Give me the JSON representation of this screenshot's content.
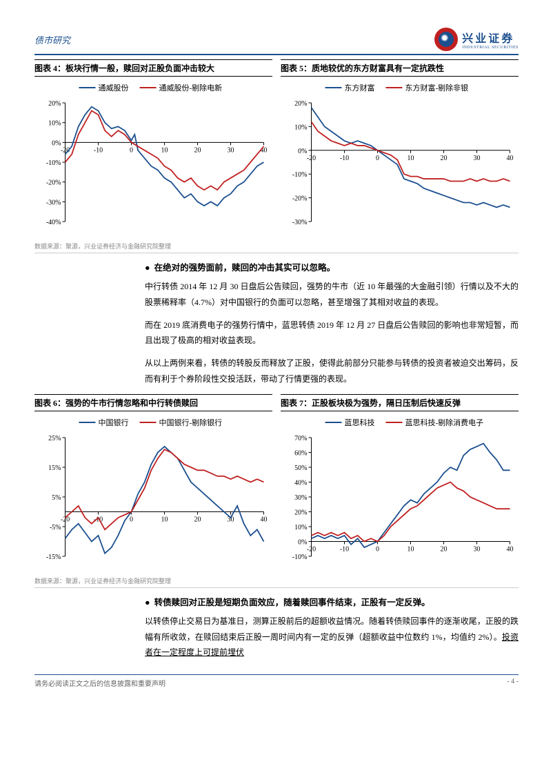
{
  "header": {
    "section": "债市研究",
    "company_cn": "兴业证券",
    "company_en": "INDUSTRIAL SECURITIES"
  },
  "source": "数据来源：聚源，兴业证券经济与金融研究院整理",
  "charts": {
    "c4": {
      "title": "图表 4：板块行情一般，赎回对正股负面冲击较大",
      "legend": [
        "通威股份",
        "通威股份-剔除电新"
      ],
      "colors": [
        "#1b4f8f",
        "#c02020"
      ],
      "xlim": [
        -20,
        40
      ],
      "ylim": [
        -40,
        20
      ],
      "ytick": 10,
      "ysuffix": "%",
      "series": [
        [
          [
            -20,
            -6
          ],
          [
            -18,
            -2
          ],
          [
            -16,
            8
          ],
          [
            -14,
            14
          ],
          [
            -12,
            18
          ],
          [
            -10,
            16
          ],
          [
            -8,
            10
          ],
          [
            -6,
            7
          ],
          [
            -4,
            8
          ],
          [
            -2,
            6
          ],
          [
            0,
            1
          ],
          [
            1,
            4
          ],
          [
            2,
            -4
          ],
          [
            4,
            -8
          ],
          [
            6,
            -12
          ],
          [
            8,
            -14
          ],
          [
            10,
            -18
          ],
          [
            12,
            -20
          ],
          [
            14,
            -24
          ],
          [
            16,
            -28
          ],
          [
            18,
            -26
          ],
          [
            20,
            -30
          ],
          [
            22,
            -32
          ],
          [
            24,
            -30
          ],
          [
            26,
            -32
          ],
          [
            28,
            -28
          ],
          [
            30,
            -26
          ],
          [
            32,
            -22
          ],
          [
            34,
            -20
          ],
          [
            36,
            -16
          ],
          [
            38,
            -12
          ],
          [
            40,
            -10
          ]
        ],
        [
          [
            -20,
            -10
          ],
          [
            -18,
            -6
          ],
          [
            -16,
            4
          ],
          [
            -14,
            10
          ],
          [
            -12,
            16
          ],
          [
            -10,
            14
          ],
          [
            -8,
            6
          ],
          [
            -6,
            3
          ],
          [
            -4,
            6
          ],
          [
            -2,
            4
          ],
          [
            0,
            0
          ],
          [
            2,
            -2
          ],
          [
            4,
            -4
          ],
          [
            6,
            -6
          ],
          [
            8,
            -8
          ],
          [
            10,
            -12
          ],
          [
            12,
            -14
          ],
          [
            14,
            -18
          ],
          [
            16,
            -20
          ],
          [
            18,
            -18
          ],
          [
            20,
            -22
          ],
          [
            22,
            -24
          ],
          [
            24,
            -22
          ],
          [
            26,
            -24
          ],
          [
            28,
            -20
          ],
          [
            30,
            -18
          ],
          [
            32,
            -16
          ],
          [
            34,
            -14
          ],
          [
            36,
            -10
          ],
          [
            38,
            -6
          ],
          [
            40,
            -2
          ]
        ]
      ]
    },
    "c5": {
      "title": "图表 5：质地较优的东方财富具有一定抗跌性",
      "legend": [
        "东方财富",
        "东方财富-剔除非银"
      ],
      "colors": [
        "#1b4f8f",
        "#c02020"
      ],
      "xlim": [
        -20,
        40
      ],
      "ylim": [
        -30,
        20
      ],
      "ytick": 10,
      "ysuffix": "%",
      "series": [
        [
          [
            -20,
            18
          ],
          [
            -18,
            14
          ],
          [
            -16,
            10
          ],
          [
            -14,
            8
          ],
          [
            -12,
            6
          ],
          [
            -10,
            4
          ],
          [
            -8,
            3
          ],
          [
            -6,
            4
          ],
          [
            -4,
            3
          ],
          [
            -2,
            2
          ],
          [
            0,
            0
          ],
          [
            2,
            -2
          ],
          [
            4,
            -4
          ],
          [
            6,
            -6
          ],
          [
            8,
            -12
          ],
          [
            10,
            -13
          ],
          [
            12,
            -14
          ],
          [
            14,
            -16
          ],
          [
            16,
            -17
          ],
          [
            18,
            -18
          ],
          [
            20,
            -19
          ],
          [
            22,
            -20
          ],
          [
            24,
            -21
          ],
          [
            26,
            -22
          ],
          [
            28,
            -22
          ],
          [
            30,
            -23
          ],
          [
            32,
            -22
          ],
          [
            34,
            -23
          ],
          [
            36,
            -24
          ],
          [
            38,
            -23
          ],
          [
            40,
            -24
          ]
        ],
        [
          [
            -20,
            12
          ],
          [
            -18,
            8
          ],
          [
            -16,
            6
          ],
          [
            -14,
            4
          ],
          [
            -12,
            3
          ],
          [
            -10,
            2
          ],
          [
            -8,
            3
          ],
          [
            -6,
            2
          ],
          [
            -4,
            2
          ],
          [
            -2,
            1
          ],
          [
            0,
            0
          ],
          [
            2,
            -1
          ],
          [
            4,
            -2
          ],
          [
            6,
            -4
          ],
          [
            8,
            -10
          ],
          [
            10,
            -11
          ],
          [
            12,
            -11
          ],
          [
            14,
            -12
          ],
          [
            16,
            -12
          ],
          [
            18,
            -12
          ],
          [
            20,
            -12
          ],
          [
            22,
            -13
          ],
          [
            24,
            -13
          ],
          [
            26,
            -13
          ],
          [
            28,
            -12
          ],
          [
            30,
            -13
          ],
          [
            32,
            -12
          ],
          [
            34,
            -13
          ],
          [
            36,
            -13
          ],
          [
            38,
            -12
          ],
          [
            40,
            -13
          ]
        ]
      ]
    },
    "c6": {
      "title": "图表 6：强势的牛市行情忽略和中行转债赎回",
      "legend": [
        "中国银行",
        "中国银行-剔除银行"
      ],
      "colors": [
        "#1b4f8f",
        "#c02020"
      ],
      "xlim": [
        -20,
        40
      ],
      "ylim": [
        -15,
        25
      ],
      "ytick": 10,
      "ysuffix": "%",
      "ybase": -15,
      "series": [
        [
          [
            -20,
            -9
          ],
          [
            -18,
            -6
          ],
          [
            -16,
            -4
          ],
          [
            -14,
            -7
          ],
          [
            -12,
            -10
          ],
          [
            -10,
            -8
          ],
          [
            -8,
            -14
          ],
          [
            -6,
            -12
          ],
          [
            -4,
            -8
          ],
          [
            -2,
            -3
          ],
          [
            0,
            0
          ],
          [
            2,
            6
          ],
          [
            4,
            10
          ],
          [
            6,
            16
          ],
          [
            8,
            20
          ],
          [
            10,
            22
          ],
          [
            12,
            20
          ],
          [
            14,
            18
          ],
          [
            16,
            14
          ],
          [
            18,
            10
          ],
          [
            20,
            8
          ],
          [
            22,
            6
          ],
          [
            24,
            4
          ],
          [
            26,
            2
          ],
          [
            28,
            0
          ],
          [
            30,
            -2
          ],
          [
            32,
            2
          ],
          [
            34,
            -4
          ],
          [
            36,
            -8
          ],
          [
            38,
            -6
          ],
          [
            40,
            -10
          ]
        ],
        [
          [
            -20,
            -2
          ],
          [
            -18,
            0
          ],
          [
            -16,
            2
          ],
          [
            -14,
            -2
          ],
          [
            -12,
            -4
          ],
          [
            -10,
            -2
          ],
          [
            -8,
            -6
          ],
          [
            -6,
            -4
          ],
          [
            -4,
            -2
          ],
          [
            -2,
            -1
          ],
          [
            0,
            0
          ],
          [
            2,
            4
          ],
          [
            4,
            8
          ],
          [
            6,
            14
          ],
          [
            8,
            18
          ],
          [
            10,
            21
          ],
          [
            12,
            20
          ],
          [
            14,
            18
          ],
          [
            16,
            16
          ],
          [
            18,
            15
          ],
          [
            20,
            14
          ],
          [
            22,
            14
          ],
          [
            24,
            13
          ],
          [
            26,
            12
          ],
          [
            28,
            12
          ],
          [
            30,
            11
          ],
          [
            32,
            12
          ],
          [
            34,
            11
          ],
          [
            36,
            10
          ],
          [
            38,
            11
          ],
          [
            40,
            10
          ]
        ]
      ]
    },
    "c7": {
      "title": "图表 7：正股板块极为强势，隔日压制后快速反弹",
      "legend": [
        "蓝思科技",
        "蓝思科技-剔除消费电子"
      ],
      "colors": [
        "#1b4f8f",
        "#c02020"
      ],
      "xlim": [
        -20,
        40
      ],
      "ylim": [
        -10,
        70
      ],
      "ytick": 10,
      "ysuffix": "%",
      "series": [
        [
          [
            -20,
            2
          ],
          [
            -18,
            4
          ],
          [
            -16,
            2
          ],
          [
            -14,
            4
          ],
          [
            -12,
            2
          ],
          [
            -10,
            4
          ],
          [
            -8,
            -2
          ],
          [
            -6,
            2
          ],
          [
            -4,
            -4
          ],
          [
            -2,
            -2
          ],
          [
            0,
            0
          ],
          [
            2,
            6
          ],
          [
            4,
            12
          ],
          [
            6,
            18
          ],
          [
            8,
            24
          ],
          [
            10,
            28
          ],
          [
            12,
            26
          ],
          [
            14,
            32
          ],
          [
            16,
            36
          ],
          [
            18,
            40
          ],
          [
            20,
            46
          ],
          [
            22,
            50
          ],
          [
            24,
            48
          ],
          [
            26,
            58
          ],
          [
            28,
            62
          ],
          [
            30,
            64
          ],
          [
            32,
            66
          ],
          [
            34,
            60
          ],
          [
            36,
            55
          ],
          [
            38,
            48
          ],
          [
            40,
            48
          ]
        ],
        [
          [
            -20,
            4
          ],
          [
            -18,
            6
          ],
          [
            -16,
            4
          ],
          [
            -14,
            6
          ],
          [
            -12,
            4
          ],
          [
            -10,
            6
          ],
          [
            -8,
            2
          ],
          [
            -6,
            4
          ],
          [
            -4,
            0
          ],
          [
            -2,
            2
          ],
          [
            0,
            0
          ],
          [
            2,
            4
          ],
          [
            4,
            10
          ],
          [
            6,
            14
          ],
          [
            8,
            18
          ],
          [
            10,
            22
          ],
          [
            12,
            24
          ],
          [
            14,
            28
          ],
          [
            16,
            32
          ],
          [
            18,
            36
          ],
          [
            20,
            38
          ],
          [
            22,
            40
          ],
          [
            24,
            36
          ],
          [
            26,
            34
          ],
          [
            28,
            30
          ],
          [
            30,
            28
          ],
          [
            32,
            26
          ],
          [
            34,
            24
          ],
          [
            36,
            22
          ],
          [
            38,
            22
          ],
          [
            40,
            22
          ]
        ]
      ]
    }
  },
  "text": {
    "b1": "在绝对的强势面前，赎回的冲击其实可以忽略。",
    "p1": "中行转债 2014 年 12 月 30 日盘后公告赎回，强势的牛市（近 10 年最强的大金融引领）行情以及不大的股票稀释率（4.7%）对中国银行的负面可以忽略，甚至增强了其相对收益的表现。",
    "p2": "而在 2019 底消费电子的强势行情中，蓝思转债 2019 年 12 月 27 日盘后公告赎回的影响也非常短暂，而且出现了极高的相对收益表现。",
    "p3": "从以上两例来看，转债的转股反而释放了正股，使得此前部分只能参与转债的投资者被迫交出筹码，反而有利于个券阶段性交投活跃，带动了行情更强的表现。",
    "b2": "转债赎回对正股是短期负面效应，随着赎回事件结束，正股有一定反弹。",
    "p4a": "以转债停止交易日为基准日，测算正股前后的超额收益情况。随着转债赎回事件的逐渐收尾，正股的跌幅有所收敛，在赎回结束后正股一周时间内有一定的反弹（超额收益中位数约 1%，均值约 2%）。",
    "p4b": "投资者在一定程度上可提前埋伏"
  },
  "footer": {
    "disclaimer": "请务必阅读正文之后的信息披露和重要声明",
    "page": "- 4 -"
  }
}
